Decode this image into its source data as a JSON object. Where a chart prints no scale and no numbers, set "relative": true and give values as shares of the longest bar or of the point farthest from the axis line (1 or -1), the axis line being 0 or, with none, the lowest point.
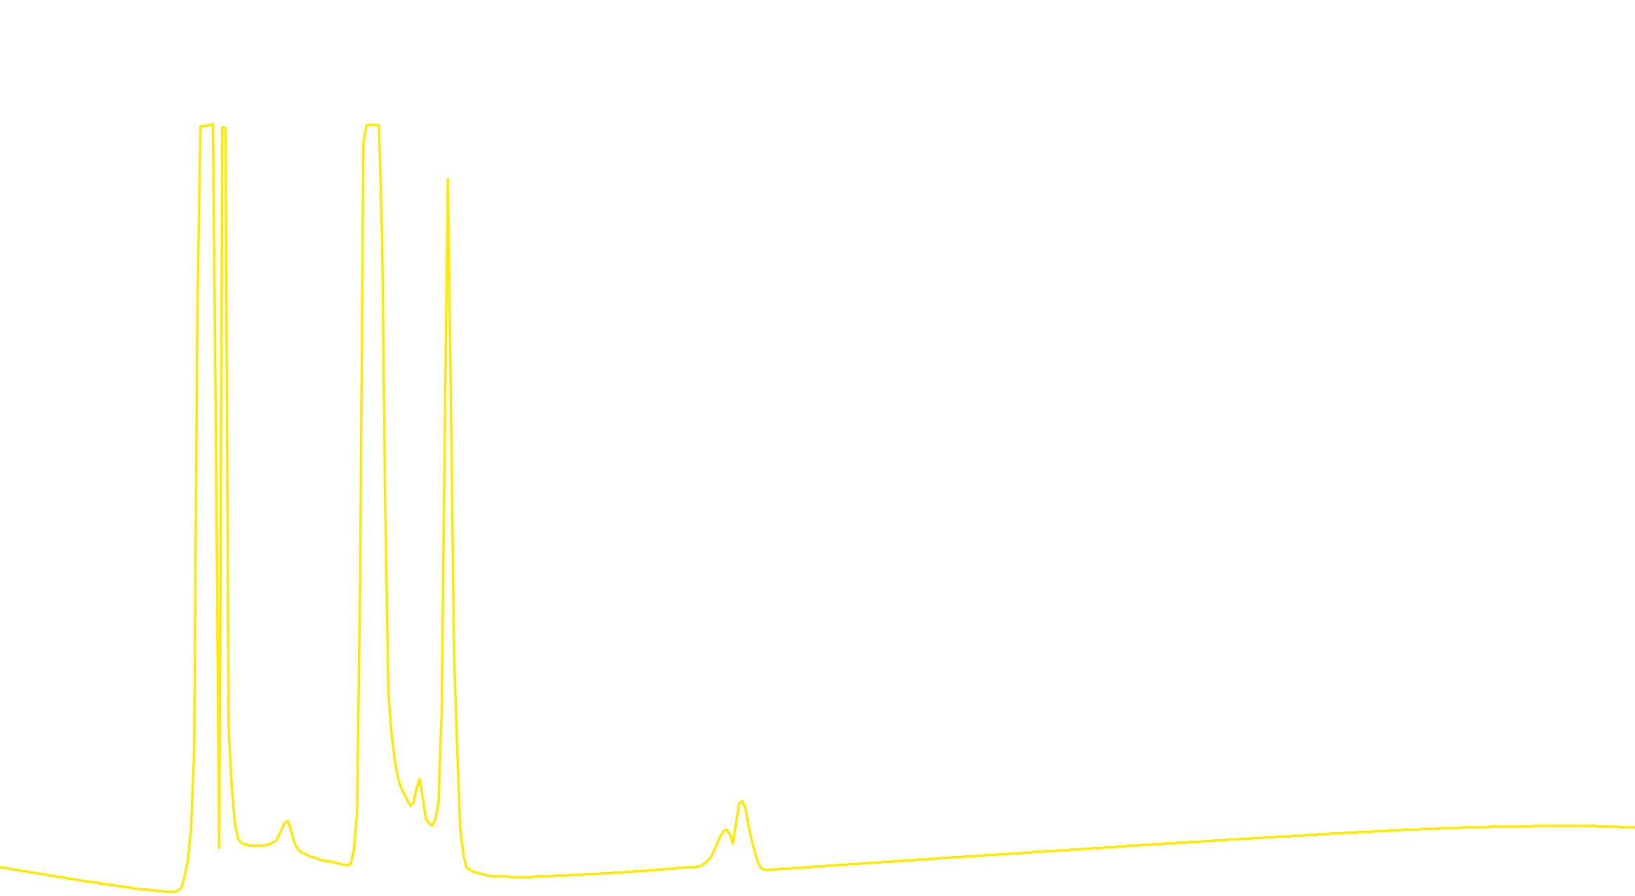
{
  "chart_data": {
    "type": "line",
    "relative": true,
    "color": "#ffea00",
    "marker": "none",
    "line_style": "solid",
    "tick_labels": false,
    "categories": [
      null,
      null,
      null,
      null,
      null,
      null,
      null,
      null,
      null,
      null,
      null,
      null,
      null,
      null,
      null,
      null,
      null,
      null,
      null,
      null,
      null,
      null,
      null,
      null,
      null,
      null,
      null,
      null,
      null,
      null,
      null,
      null,
      null,
      null,
      null,
      null,
      null,
      null,
      null,
      null,
      null,
      null,
      null,
      null,
      null,
      null,
      null,
      null,
      null,
      null,
      null,
      null,
      null,
      null,
      null,
      null,
      null,
      null,
      null,
      null,
      null,
      null,
      null,
      null,
      null,
      null,
      null,
      null,
      null,
      null,
      null,
      null,
      null,
      null,
      null,
      null,
      null,
      null,
      null,
      null,
      null,
      null,
      null,
      null,
      null,
      null,
      null,
      null,
      null,
      null,
      null,
      null,
      null,
      null,
      null,
      null,
      null,
      null,
      null,
      null,
      null,
      null,
      null,
      null,
      null,
      null,
      null,
      null,
      null,
      null,
      null,
      null,
      null,
      null,
      null,
      null,
      null,
      null,
      null,
      null,
      null,
      null,
      null,
      null,
      null,
      null,
      null,
      null,
      null,
      null,
      null,
      null,
      null,
      null,
      null,
      null,
      null,
      null,
      null,
      null,
      null,
      null,
      null,
      null,
      null,
      null,
      null,
      null,
      null,
      null,
      null,
      null,
      null,
      null,
      null,
      null,
      null,
      null,
      null,
      null,
      null,
      null,
      null,
      null,
      null,
      null,
      null,
      null,
      null,
      null,
      null,
      null,
      null,
      null,
      null,
      null,
      null,
      null,
      null,
      null,
      null,
      null,
      null,
      null,
      null,
      null,
      null,
      null,
      null,
      null,
      null,
      null,
      null,
      null,
      null,
      null,
      null,
      null,
      null,
      null,
      null,
      null,
      null,
      null,
      null,
      null,
      null,
      null,
      null,
      null,
      null,
      null,
      null,
      null,
      null,
      null,
      null,
      null,
      null,
      null,
      null,
      null,
      null,
      null,
      null,
      null,
      null,
      null,
      null,
      null,
      null,
      null,
      null,
      null,
      null,
      null,
      null,
      null,
      null,
      null,
      null,
      null,
      null,
      null,
      null,
      null,
      null,
      null,
      null,
      null,
      null,
      null,
      null,
      null,
      null,
      null,
      null,
      null,
      null,
      null,
      null,
      null,
      null,
      null,
      null,
      null,
      null,
      null,
      null,
      null,
      null,
      null,
      null,
      null,
      null,
      null,
      null,
      null,
      null,
      null,
      null,
      null,
      null,
      null,
      null,
      null,
      null,
      null,
      null,
      null,
      null,
      null,
      null,
      null,
      null,
      null,
      null,
      null,
      null,
      null,
      null,
      null,
      null,
      null,
      null,
      null,
      null,
      null,
      null,
      null,
      null,
      null,
      null,
      null,
      null,
      null,
      null,
      null,
      null,
      null,
      null,
      null,
      null,
      null,
      null,
      null,
      null,
      null,
      null,
      null,
      null,
      null,
      null,
      null,
      null,
      null,
      null,
      null,
      null,
      null,
      null,
      null,
      null,
      null,
      null,
      null,
      null,
      null,
      null,
      null,
      null,
      null,
      null,
      null,
      null,
      null,
      null,
      null,
      null,
      null,
      null,
      null,
      null,
      null,
      null,
      null,
      null,
      null,
      null,
      null,
      null,
      null,
      null,
      null,
      null,
      null,
      null,
      null,
      null,
      null,
      null,
      null,
      null,
      null,
      null,
      null,
      null,
      null,
      null,
      null,
      null,
      null,
      null,
      null,
      null,
      null,
      null,
      null,
      null,
      null,
      null,
      null,
      null,
      null,
      null,
      null,
      null,
      null,
      null,
      null,
      null,
      null,
      null,
      null,
      null,
      null,
      null,
      null,
      null,
      null,
      null,
      null,
      null,
      null,
      null,
      null,
      null,
      null,
      null,
      null,
      null,
      null,
      null,
      null,
      null,
      null,
      null,
      null,
      null,
      null,
      null,
      null,
      null,
      null,
      null,
      null,
      null,
      null,
      null,
      null,
      null,
      null,
      null,
      null,
      null,
      null,
      null,
      null,
      null,
      null,
      null,
      null,
      null,
      null,
      null,
      null,
      null,
      null,
      null,
      null,
      null,
      null,
      null,
      null,
      null,
      null,
      null,
      null,
      null,
      null,
      null,
      null,
      null,
      null,
      null,
      null,
      null,
      null,
      null,
      null,
      null,
      null,
      null,
      null,
      null,
      null,
      null,
      null,
      null,
      null,
      null,
      null,
      null,
      null,
      null,
      null,
      null,
      null,
      null,
      null,
      null,
      null,
      null,
      null,
      null,
      null,
      null,
      null,
      null,
      null,
      null,
      null,
      null
    ],
    "values": [
      0.032,
      0.031,
      0.031,
      0.03,
      0.029,
      0.029,
      0.028,
      0.027,
      0.027,
      0.026,
      0.025,
      0.025,
      0.024,
      0.023,
      0.023,
      0.022,
      0.021,
      0.021,
      0.02,
      0.019,
      0.019,
      0.018,
      0.017,
      0.017,
      0.016,
      0.015,
      0.015,
      0.014,
      0.013,
      0.013,
      0.012,
      0.012,
      0.011,
      0.01,
      0.01,
      0.009,
      0.009,
      0.008,
      0.007,
      0.007,
      0.006,
      0.006,
      0.005,
      0.004,
      0.004,
      0.003,
      0.003,
      0.003,
      0.002,
      0.002,
      0.001,
      0.001,
      0.001,
      0.0,
      0.0,
      0.0,
      0.0,
      0.002,
      0.006,
      0.021,
      0.041,
      0.082,
      0.184,
      0.75,
      0.997,
      0.998,
      0.998,
      0.999,
      1,
      0.567,
      0.057,
      0.996,
      0.995,
      0.214,
      0.136,
      0.089,
      0.069,
      0.064,
      0.062,
      0.061,
      0.06,
      0.06,
      0.06,
      0.06,
      0.06,
      0.061,
      0.062,
      0.064,
      0.066,
      0.073,
      0.082,
      0.09,
      0.092,
      0.079,
      0.064,
      0.056,
      0.052,
      0.05,
      0.048,
      0.046,
      0.045,
      0.044,
      0.042,
      0.041,
      0.04,
      0.04,
      0.039,
      0.038,
      0.037,
      0.036,
      0.035,
      0.035,
      0.036,
      0.055,
      0.104,
      0.41,
      0.975,
      0.998,
      0.999,
      0.999,
      0.999,
      0.998,
      0.85,
      0.5,
      0.26,
      0.207,
      0.172,
      0.15,
      0.136,
      0.128,
      0.12,
      0.112,
      0.116,
      0.135,
      0.147,
      0.122,
      0.095,
      0.089,
      0.086,
      0.094,
      0.116,
      0.233,
      0.596,
      0.929,
      0.626,
      0.305,
      0.183,
      0.079,
      0.047,
      0.031,
      0.029,
      0.026,
      0.025,
      0.024,
      0.023,
      0.022,
      0.021,
      0.02,
      0.02,
      0.02,
      0.02,
      0.02,
      0.02,
      0.019,
      0.019,
      0.019,
      0.019,
      0.019,
      0.019,
      0.019,
      0.019,
      0.02,
      0.02,
      0.02,
      0.02,
      0.02,
      0.02,
      0.021,
      0.021,
      0.021,
      0.021,
      0.021,
      0.022,
      0.022,
      0.022,
      0.022,
      0.022,
      0.023,
      0.023,
      0.023,
      0.023,
      0.023,
      0.024,
      0.024,
      0.024,
      0.024,
      0.025,
      0.025,
      0.025,
      0.025,
      0.026,
      0.026,
      0.026,
      0.027,
      0.027,
      0.027,
      0.027,
      0.028,
      0.028,
      0.028,
      0.029,
      0.029,
      0.029,
      0.03,
      0.03,
      0.03,
      0.031,
      0.031,
      0.031,
      0.032,
      0.032,
      0.032,
      0.032,
      0.033,
      0.034,
      0.037,
      0.041,
      0.045,
      0.054,
      0.063,
      0.072,
      0.079,
      0.081,
      0.075,
      0.063,
      0.089,
      0.115,
      0.118,
      0.109,
      0.086,
      0.067,
      0.052,
      0.038,
      0.031,
      0.029,
      0.028,
      0.029,
      0.029,
      0.029,
      0.03,
      0.03,
      0.03,
      0.03,
      0.031,
      0.031,
      0.031,
      0.031,
      0.032,
      0.032,
      0.032,
      0.033,
      0.033,
      0.033,
      0.033,
      0.034,
      0.034,
      0.034,
      0.035,
      0.035,
      0.035,
      0.035,
      0.036,
      0.036,
      0.036,
      0.036,
      0.037,
      0.037,
      0.037,
      0.038,
      0.038,
      0.038,
      0.038,
      0.039,
      0.039,
      0.039,
      0.039,
      0.04,
      0.04,
      0.04,
      0.041,
      0.041,
      0.041,
      0.041,
      0.042,
      0.042,
      0.042,
      0.042,
      0.043,
      0.043,
      0.043,
      0.044,
      0.044,
      0.044,
      0.044,
      0.045,
      0.045,
      0.045,
      0.045,
      0.046,
      0.046,
      0.046,
      0.046,
      0.047,
      0.047,
      0.047,
      0.048,
      0.048,
      0.048,
      0.048,
      0.049,
      0.049,
      0.049,
      0.049,
      0.05,
      0.05,
      0.05,
      0.05,
      0.051,
      0.051,
      0.051,
      0.052,
      0.052,
      0.052,
      0.052,
      0.053,
      0.053,
      0.053,
      0.053,
      0.054,
      0.054,
      0.054,
      0.054,
      0.055,
      0.055,
      0.055,
      0.055,
      0.056,
      0.056,
      0.056,
      0.057,
      0.057,
      0.057,
      0.057,
      0.058,
      0.058,
      0.058,
      0.058,
      0.059,
      0.059,
      0.059,
      0.06,
      0.06,
      0.06,
      0.06,
      0.061,
      0.061,
      0.061,
      0.061,
      0.062,
      0.062,
      0.062,
      0.062,
      0.063,
      0.063,
      0.063,
      0.063,
      0.064,
      0.064,
      0.064,
      0.064,
      0.065,
      0.065,
      0.065,
      0.065,
      0.066,
      0.066,
      0.066,
      0.066,
      0.067,
      0.067,
      0.067,
      0.067,
      0.068,
      0.068,
      0.068,
      0.068,
      0.069,
      0.069,
      0.069,
      0.069,
      0.07,
      0.07,
      0.07,
      0.07,
      0.071,
      0.071,
      0.071,
      0.071,
      0.072,
      0.072,
      0.072,
      0.072,
      0.072,
      0.073,
      0.073,
      0.073,
      0.073,
      0.074,
      0.074,
      0.074,
      0.074,
      0.075,
      0.075,
      0.075,
      0.075,
      0.076,
      0.076,
      0.076,
      0.076,
      0.076,
      0.077,
      0.077,
      0.077,
      0.077,
      0.078,
      0.078,
      0.078,
      0.078,
      0.078,
      0.079,
      0.079,
      0.079,
      0.079,
      0.079,
      0.08,
      0.08,
      0.08,
      0.08,
      0.081,
      0.081,
      0.081,
      0.081,
      0.081,
      0.081,
      0.082,
      0.082,
      0.082,
      0.082,
      0.082,
      0.082,
      0.083,
      0.083,
      0.083,
      0.083,
      0.083,
      0.083,
      0.083,
      0.084,
      0.084,
      0.084,
      0.084,
      0.084,
      0.084,
      0.084,
      0.084,
      0.084,
      0.085,
      0.085,
      0.085,
      0.085,
      0.085,
      0.085,
      0.085,
      0.085,
      0.085,
      0.085,
      0.085,
      0.085,
      0.085,
      0.085,
      0.086,
      0.086,
      0.086,
      0.086,
      0.086,
      0.086,
      0.086,
      0.086,
      0.086,
      0.086,
      0.086,
      0.086,
      0.086,
      0.086,
      0.086,
      0.086,
      0.086,
      0.086,
      0.086,
      0.086,
      0.085,
      0.085,
      0.085,
      0.085,
      0.085,
      0.085,
      0.085,
      0.084,
      0.084,
      0.084,
      0.084,
      0.084,
      0.084
    ]
  }
}
